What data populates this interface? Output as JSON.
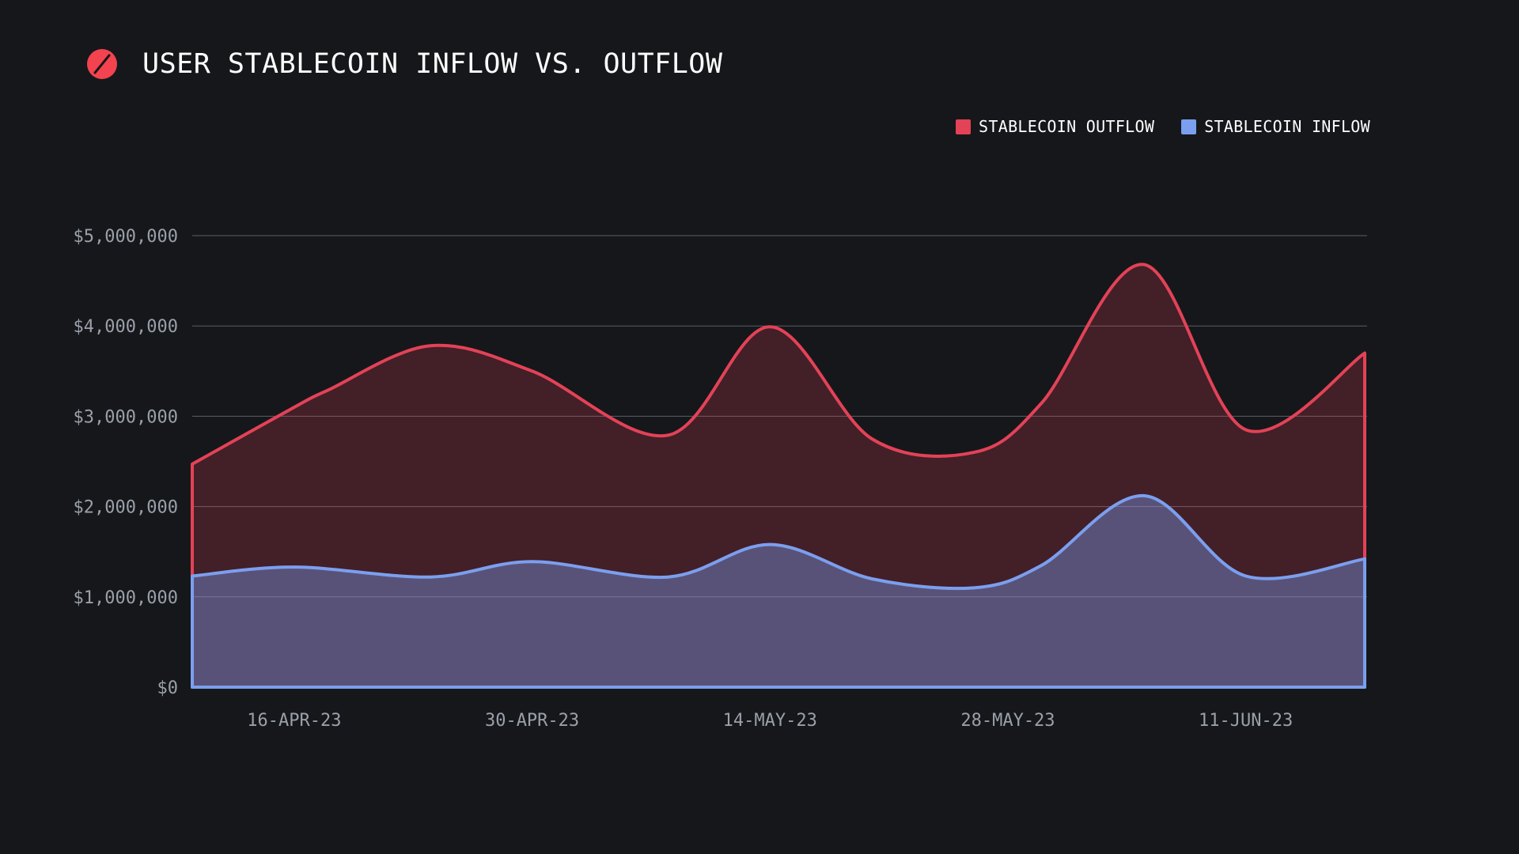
{
  "colors": {
    "background": "#16171b",
    "outflow": "#e34257",
    "inflow": "#7b9fef",
    "grid": "#5c5f66",
    "tick": "#9aa0aa"
  },
  "chart_data": {
    "type": "area",
    "title": "USER STABLECOIN INFLOW VS. OUTFLOW",
    "xlabel": "",
    "ylabel": "",
    "ylim": [
      0,
      5000000
    ],
    "y_ticks": [
      0,
      1000000,
      2000000,
      3000000,
      4000000,
      5000000
    ],
    "y_tick_labels": [
      "$0",
      "$1,000,000",
      "$2,000,000",
      "$3,000,000",
      "$4,000,000",
      "$5,000,000"
    ],
    "x_tick_labels": [
      "16-APR-23",
      "30-APR-23",
      "14-MAY-23",
      "28-MAY-23",
      "11-JUN-23"
    ],
    "x_ticks_day_index": [
      10,
      24,
      38,
      52,
      66
    ],
    "x_day_range": [
      4,
      73
    ],
    "legend_position": "top-right",
    "grid": true,
    "series": [
      {
        "name": "STABLECOIN OUTFLOW",
        "color": "#e34257",
        "day_index": [
          4,
          10,
          12,
          18,
          24,
          32,
          38,
          44,
          50,
          54,
          60,
          66,
          73
        ],
        "values": [
          2470000,
          3100000,
          3290000,
          3780000,
          3500000,
          2790000,
          3990000,
          2750000,
          2600000,
          3150000,
          4680000,
          2850000,
          3700000
        ]
      },
      {
        "name": "STABLECOIN INFLOW",
        "color": "#7b9fef",
        "day_index": [
          4,
          10,
          18,
          24,
          32,
          38,
          44,
          50,
          54,
          60,
          66,
          73
        ],
        "values": [
          1230000,
          1330000,
          1220000,
          1390000,
          1220000,
          1580000,
          1200000,
          1100000,
          1350000,
          2120000,
          1230000,
          1420000
        ]
      }
    ]
  }
}
